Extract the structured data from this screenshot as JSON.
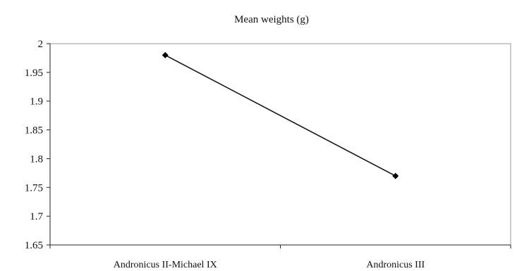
{
  "chart_data": {
    "type": "line",
    "title": "Mean weights (g)",
    "categories": [
      "Andronicus II-Michael IX",
      "Andronicus III"
    ],
    "series": [
      {
        "values": [
          1.98,
          1.77
        ],
        "color": "#000000"
      }
    ],
    "ylim": [
      1.65,
      2.0
    ],
    "yticks": [
      1.65,
      1.7,
      1.75,
      1.8,
      1.85,
      1.9,
      1.95,
      2.0
    ],
    "ytick_labels": [
      "1.65",
      "1.7",
      "1.75",
      "1.8",
      "1.85",
      "1.9",
      "1.95",
      "2"
    ],
    "grid": false,
    "legend": "none",
    "marker": "diamond-icon"
  }
}
